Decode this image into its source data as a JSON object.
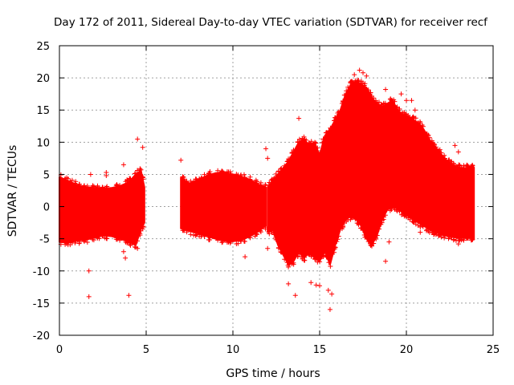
{
  "chart_data": {
    "type": "scatter",
    "title": "Day 172 of 2011, Sidereal Day-to-day VTEC variation (SDTVAR) for receiver recf",
    "xlabel": "GPS time / hours",
    "ylabel": "SDTVAR / TECUs",
    "xlim": [
      0,
      25
    ],
    "ylim": [
      -20,
      25
    ],
    "xticks": [
      0,
      5,
      10,
      15,
      20,
      25
    ],
    "yticks": [
      -20,
      -15,
      -10,
      -5,
      0,
      5,
      10,
      15,
      20,
      25
    ],
    "grid": true,
    "marker": "+",
    "series_color": "#ff0000",
    "series": [
      {
        "name": "SDTVAR",
        "description": "dense band of points; envelope given as [hour, min, max]",
        "segments": [
          [
            [
              0.0,
              -5.5,
              4.6
            ],
            [
              0.5,
              -5.6,
              4.0
            ],
            [
              1.0,
              -5.3,
              3.4
            ],
            [
              1.5,
              -5.2,
              3.0
            ],
            [
              2.0,
              -4.8,
              2.9
            ],
            [
              2.5,
              -4.5,
              2.8
            ],
            [
              3.0,
              -4.6,
              2.9
            ],
            [
              3.5,
              -5.0,
              3.2
            ],
            [
              4.0,
              -5.5,
              3.8
            ],
            [
              4.4,
              -6.0,
              5.0
            ],
            [
              4.7,
              -3.5,
              5.6
            ],
            [
              4.9,
              -2.5,
              3.0
            ]
          ],
          [
            [
              7.0,
              -3.4,
              4.5
            ],
            [
              7.5,
              -3.8,
              3.6
            ],
            [
              8.0,
              -4.2,
              4.2
            ],
            [
              8.5,
              -4.6,
              4.8
            ],
            [
              9.0,
              -5.0,
              5.2
            ],
            [
              9.5,
              -5.3,
              5.3
            ],
            [
              10.0,
              -5.4,
              5.0
            ],
            [
              10.5,
              -5.2,
              4.6
            ],
            [
              11.0,
              -4.6,
              4.2
            ],
            [
              11.5,
              -3.8,
              3.4
            ],
            [
              11.9,
              -3.0,
              3.0
            ]
          ],
          [
            [
              12.0,
              -4.0,
              3.0
            ],
            [
              12.3,
              -3.5,
              4.0
            ],
            [
              12.6,
              -6.0,
              5.0
            ],
            [
              12.9,
              -7.5,
              6.0
            ],
            [
              13.2,
              -9.0,
              7.0
            ],
            [
              13.5,
              -8.5,
              8.5
            ],
            [
              13.8,
              -7.0,
              10.0
            ],
            [
              14.1,
              -8.0,
              10.5
            ],
            [
              14.4,
              -7.0,
              9.5
            ],
            [
              14.7,
              -8.0,
              10.0
            ],
            [
              15.0,
              -8.5,
              8.0
            ],
            [
              15.3,
              -7.0,
              11.0
            ],
            [
              15.6,
              -9.0,
              12.0
            ],
            [
              15.9,
              -6.0,
              13.5
            ],
            [
              16.2,
              -3.5,
              15.0
            ],
            [
              16.5,
              -2.0,
              17.5
            ],
            [
              16.8,
              -1.5,
              19.0
            ],
            [
              17.1,
              -2.0,
              19.5
            ],
            [
              17.4,
              -3.0,
              19.0
            ],
            [
              17.7,
              -5.0,
              18.5
            ],
            [
              18.0,
              -6.0,
              17.0
            ],
            [
              18.3,
              -4.5,
              16.0
            ],
            [
              18.6,
              -2.0,
              15.5
            ],
            [
              18.9,
              -0.5,
              16.0
            ],
            [
              19.2,
              0.0,
              16.5
            ],
            [
              19.5,
              -0.3,
              15.0
            ],
            [
              19.8,
              -1.0,
              14.2
            ],
            [
              20.1,
              -1.5,
              14.0
            ],
            [
              20.4,
              -2.0,
              13.5
            ],
            [
              20.7,
              -2.5,
              13.0
            ],
            [
              21.0,
              -3.0,
              12.0
            ],
            [
              21.3,
              -3.5,
              10.5
            ],
            [
              21.6,
              -4.0,
              9.5
            ],
            [
              21.9,
              -4.2,
              8.5
            ],
            [
              22.2,
              -4.5,
              7.5
            ],
            [
              22.5,
              -4.5,
              6.8
            ],
            [
              22.8,
              -4.8,
              6.3
            ],
            [
              23.1,
              -4.8,
              6.0
            ],
            [
              23.4,
              -4.8,
              6.0
            ],
            [
              23.7,
              -4.9,
              6.1
            ],
            [
              23.9,
              -4.9,
              6.1
            ]
          ]
        ],
        "outliers": [
          [
            1.7,
            -14.0
          ],
          [
            1.7,
            -10.0
          ],
          [
            1.8,
            5.0
          ],
          [
            2.7,
            5.3
          ],
          [
            2.7,
            4.8
          ],
          [
            3.7,
            6.5
          ],
          [
            3.7,
            -7.0
          ],
          [
            3.8,
            -8.0
          ],
          [
            4.0,
            -13.8
          ],
          [
            4.5,
            -6.5
          ],
          [
            4.5,
            10.5
          ],
          [
            4.8,
            9.2
          ],
          [
            7.0,
            7.2
          ],
          [
            10.7,
            -7.8
          ],
          [
            11.9,
            9.0
          ],
          [
            12.0,
            -6.5
          ],
          [
            12.0,
            7.5
          ],
          [
            13.2,
            -12.0
          ],
          [
            13.6,
            -13.8
          ],
          [
            13.8,
            13.7
          ],
          [
            14.5,
            -11.8
          ],
          [
            14.8,
            -12.2
          ],
          [
            15.0,
            -12.3
          ],
          [
            15.5,
            -13.0
          ],
          [
            15.7,
            -13.6
          ],
          [
            15.6,
            -16.0
          ],
          [
            16.6,
            14.5
          ],
          [
            17.0,
            20.5
          ],
          [
            17.3,
            21.2
          ],
          [
            17.5,
            20.8
          ],
          [
            17.7,
            20.3
          ],
          [
            18.8,
            18.2
          ],
          [
            18.8,
            -8.5
          ],
          [
            19.0,
            -5.5
          ],
          [
            19.7,
            17.5
          ],
          [
            20.0,
            16.5
          ],
          [
            20.3,
            16.5
          ],
          [
            20.5,
            15.0
          ],
          [
            20.8,
            -4.0
          ],
          [
            22.8,
            9.5
          ],
          [
            23.0,
            8.5
          ],
          [
            23.0,
            -5.8
          ]
        ]
      }
    ]
  }
}
